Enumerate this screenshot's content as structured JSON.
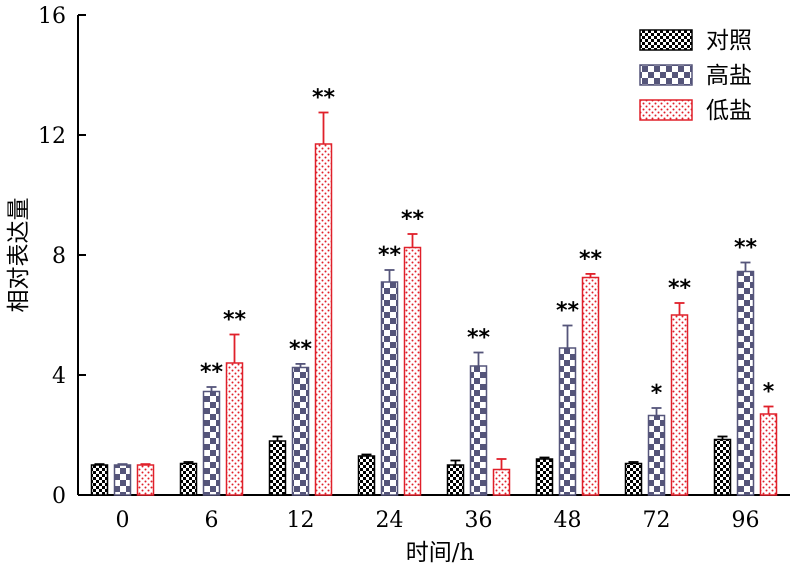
{
  "chart_data": {
    "type": "bar",
    "title": "",
    "xlabel": "时间/h",
    "ylabel": "相对表达量",
    "ylim": [
      0,
      16
    ],
    "yticks": [
      0,
      4,
      8,
      12,
      16
    ],
    "categories": [
      "0",
      "6",
      "12",
      "24",
      "36",
      "48",
      "72",
      "96"
    ],
    "legend_position": "top-right",
    "grid": false,
    "series": [
      {
        "name": "对照",
        "color": "#000000",
        "pattern": "small-checker",
        "values": [
          1.0,
          1.05,
          1.8,
          1.3,
          1.0,
          1.2,
          1.05,
          1.85
        ],
        "errors": [
          0.03,
          0.05,
          0.15,
          0.05,
          0.15,
          0.05,
          0.05,
          0.1
        ],
        "significance": [
          "",
          "",
          "",
          "",
          "",
          "",
          "",
          ""
        ]
      },
      {
        "name": "高盐",
        "color": "#55557a",
        "pattern": "large-checker",
        "values": [
          1.0,
          3.45,
          4.25,
          7.1,
          4.3,
          4.9,
          2.65,
          7.45
        ],
        "errors": [
          0.03,
          0.15,
          0.12,
          0.4,
          0.45,
          0.75,
          0.25,
          0.3
        ],
        "significance": [
          "",
          "**",
          "**",
          "**",
          "**",
          "**",
          "*",
          "**"
        ]
      },
      {
        "name": "低盐",
        "color": "#e0202a",
        "pattern": "dots",
        "values": [
          1.0,
          4.4,
          11.7,
          8.25,
          0.85,
          7.25,
          6.0,
          2.7
        ],
        "errors": [
          0.03,
          0.95,
          1.05,
          0.45,
          0.35,
          0.12,
          0.4,
          0.25
        ],
        "significance": [
          "",
          "**",
          "**",
          "**",
          "",
          "**",
          "**",
          "*"
        ]
      }
    ]
  }
}
